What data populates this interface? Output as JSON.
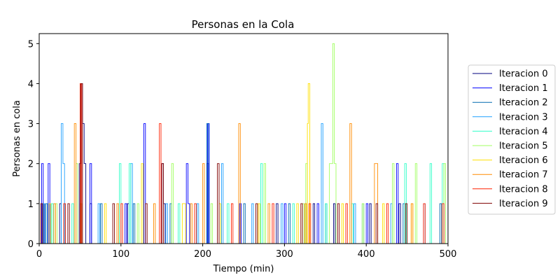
{
  "chart_data": {
    "type": "line",
    "title": "Personas en la Cola",
    "xlabel": "Tiempo (min)",
    "ylabel": "Personas en cola",
    "xlim": [
      0,
      500
    ],
    "ylim": [
      0,
      5.25
    ],
    "x_ticks": [
      0,
      100,
      200,
      300,
      400,
      500
    ],
    "y_ticks": [
      0,
      1,
      2,
      3,
      4,
      5
    ],
    "grid": false,
    "legend_position": "right",
    "series": [
      {
        "name": "Iteracion 0",
        "color": "#00007f",
        "points": [
          [
            0,
            0
          ],
          [
            4,
            1
          ],
          [
            6,
            0
          ],
          [
            25,
            1
          ],
          [
            27,
            0
          ],
          [
            49,
            2
          ],
          [
            51,
            4
          ],
          [
            53,
            3
          ],
          [
            55,
            2
          ],
          [
            57,
            0
          ],
          [
            62,
            1
          ],
          [
            64,
            0
          ],
          [
            108,
            1
          ],
          [
            110,
            0
          ],
          [
            150,
            2
          ],
          [
            152,
            1
          ],
          [
            154,
            0
          ],
          [
            205,
            2
          ],
          [
            207,
            0
          ],
          [
            290,
            1
          ],
          [
            292,
            0
          ],
          [
            335,
            1
          ],
          [
            337,
            0
          ],
          [
            360,
            1
          ],
          [
            362,
            0
          ],
          [
            404,
            1
          ],
          [
            406,
            0
          ],
          [
            440,
            1
          ],
          [
            442,
            0
          ],
          [
            500,
            0
          ]
        ]
      },
      {
        "name": "Iteracion 1",
        "color": "#0000ff",
        "points": [
          [
            0,
            0
          ],
          [
            3,
            2
          ],
          [
            5,
            0
          ],
          [
            11,
            2
          ],
          [
            13,
            0
          ],
          [
            62,
            2
          ],
          [
            64,
            0
          ],
          [
            105,
            1
          ],
          [
            107,
            0
          ],
          [
            128,
            3
          ],
          [
            130,
            0
          ],
          [
            180,
            2
          ],
          [
            182,
            1
          ],
          [
            184,
            0
          ],
          [
            206,
            3
          ],
          [
            208,
            0
          ],
          [
            245,
            1
          ],
          [
            247,
            0
          ],
          [
            300,
            1
          ],
          [
            302,
            0
          ],
          [
            340,
            1
          ],
          [
            342,
            0
          ],
          [
            400,
            1
          ],
          [
            402,
            0
          ],
          [
            437,
            2
          ],
          [
            439,
            0
          ],
          [
            500,
            0
          ]
        ]
      },
      {
        "name": "Iteracion 2",
        "color": "#006ab0",
        "points": [
          [
            0,
            0
          ],
          [
            8,
            1
          ],
          [
            10,
            0
          ],
          [
            30,
            1
          ],
          [
            32,
            0
          ],
          [
            75,
            1
          ],
          [
            77,
            0
          ],
          [
            115,
            1
          ],
          [
            117,
            0
          ],
          [
            160,
            1
          ],
          [
            162,
            0
          ],
          [
            205,
            3
          ],
          [
            207,
            0
          ],
          [
            250,
            1
          ],
          [
            252,
            0
          ],
          [
            305,
            1
          ],
          [
            307,
            0
          ],
          [
            350,
            1
          ],
          [
            352,
            0
          ],
          [
            395,
            1
          ],
          [
            397,
            0
          ],
          [
            445,
            1
          ],
          [
            447,
            0
          ],
          [
            490,
            1
          ],
          [
            492,
            0
          ],
          [
            500,
            0
          ]
        ]
      },
      {
        "name": "Iteracion 3",
        "color": "#1ea0ff",
        "points": [
          [
            0,
            0
          ],
          [
            5,
            1
          ],
          [
            7,
            0
          ],
          [
            27,
            3
          ],
          [
            29,
            2
          ],
          [
            31,
            0
          ],
          [
            50,
            1
          ],
          [
            52,
            0
          ],
          [
            72,
            1
          ],
          [
            74,
            0
          ],
          [
            112,
            2
          ],
          [
            114,
            0
          ],
          [
            155,
            1
          ],
          [
            157,
            0
          ],
          [
            193,
            1
          ],
          [
            195,
            0
          ],
          [
            223,
            2
          ],
          [
            225,
            0
          ],
          [
            260,
            1
          ],
          [
            262,
            0
          ],
          [
            296,
            1
          ],
          [
            298,
            0
          ],
          [
            345,
            3
          ],
          [
            347,
            0
          ],
          [
            385,
            1
          ],
          [
            387,
            0
          ],
          [
            430,
            1
          ],
          [
            432,
            0
          ],
          [
            470,
            1
          ],
          [
            472,
            0
          ],
          [
            500,
            0
          ]
        ]
      },
      {
        "name": "Iteracion 4",
        "color": "#30ffc8",
        "points": [
          [
            0,
            0
          ],
          [
            15,
            1
          ],
          [
            17,
            0
          ],
          [
            40,
            1
          ],
          [
            42,
            0
          ],
          [
            98,
            2
          ],
          [
            100,
            0
          ],
          [
            110,
            2
          ],
          [
            112,
            0
          ],
          [
            170,
            1
          ],
          [
            172,
            0
          ],
          [
            230,
            1
          ],
          [
            232,
            0
          ],
          [
            271,
            2
          ],
          [
            273,
            0
          ],
          [
            310,
            1
          ],
          [
            312,
            0
          ],
          [
            350,
            1
          ],
          [
            352,
            0
          ],
          [
            382,
            1
          ],
          [
            384,
            0
          ],
          [
            447,
            2
          ],
          [
            449,
            0
          ],
          [
            478,
            2
          ],
          [
            480,
            0
          ],
          [
            493,
            2
          ],
          [
            495,
            0
          ],
          [
            500,
            0
          ]
        ]
      },
      {
        "name": "Iteracion 5",
        "color": "#a0ff60",
        "points": [
          [
            0,
            0
          ],
          [
            20,
            1
          ],
          [
            22,
            0
          ],
          [
            45,
            2
          ],
          [
            47,
            0
          ],
          [
            120,
            1
          ],
          [
            122,
            0
          ],
          [
            162,
            2
          ],
          [
            164,
            0
          ],
          [
            210,
            1
          ],
          [
            212,
            0
          ],
          [
            275,
            2
          ],
          [
            277,
            0
          ],
          [
            322,
            1
          ],
          [
            324,
            0
          ],
          [
            326,
            2
          ],
          [
            328,
            0
          ],
          [
            355,
            2
          ],
          [
            357,
            2
          ],
          [
            359,
            5
          ],
          [
            361,
            2
          ],
          [
            363,
            0
          ],
          [
            395,
            1
          ],
          [
            397,
            0
          ],
          [
            432,
            2
          ],
          [
            434,
            0
          ],
          [
            460,
            2
          ],
          [
            462,
            0
          ],
          [
            495,
            2
          ],
          [
            497,
            0
          ],
          [
            500,
            0
          ]
        ]
      },
      {
        "name": "Iteracion 6",
        "color": "#ffe000",
        "points": [
          [
            0,
            0
          ],
          [
            12,
            1
          ],
          [
            14,
            0
          ],
          [
            50,
            1
          ],
          [
            52,
            0
          ],
          [
            80,
            1
          ],
          [
            82,
            0
          ],
          [
            125,
            2
          ],
          [
            127,
            0
          ],
          [
            175,
            1
          ],
          [
            179,
            0
          ],
          [
            220,
            1
          ],
          [
            222,
            0
          ],
          [
            268,
            1
          ],
          [
            270,
            0
          ],
          [
            315,
            1
          ],
          [
            317,
            0
          ],
          [
            328,
            3
          ],
          [
            329,
            4
          ],
          [
            331,
            0
          ],
          [
            370,
            1
          ],
          [
            372,
            0
          ],
          [
            420,
            1
          ],
          [
            422,
            0
          ],
          [
            455,
            1
          ],
          [
            457,
            0
          ],
          [
            500,
            0
          ]
        ]
      },
      {
        "name": "Iteracion 7",
        "color": "#ff8c00",
        "points": [
          [
            0,
            0
          ],
          [
            18,
            1
          ],
          [
            20,
            0
          ],
          [
            43,
            3
          ],
          [
            45,
            0
          ],
          [
            95,
            1
          ],
          [
            97,
            0
          ],
          [
            140,
            1
          ],
          [
            142,
            0
          ],
          [
            185,
            1
          ],
          [
            187,
            0
          ],
          [
            200,
            2
          ],
          [
            202,
            0
          ],
          [
            244,
            3
          ],
          [
            246,
            0
          ],
          [
            280,
            1
          ],
          [
            282,
            0
          ],
          [
            325,
            1
          ],
          [
            327,
            0
          ],
          [
            380,
            3
          ],
          [
            382,
            0
          ],
          [
            410,
            2
          ],
          [
            414,
            0
          ],
          [
            455,
            1
          ],
          [
            457,
            0
          ],
          [
            500,
            0
          ]
        ]
      },
      {
        "name": "Iteracion 8",
        "color": "#ff2000",
        "points": [
          [
            0,
            0
          ],
          [
            30,
            1
          ],
          [
            32,
            0
          ],
          [
            50,
            4
          ],
          [
            52,
            0
          ],
          [
            100,
            1
          ],
          [
            102,
            0
          ],
          [
            147,
            3
          ],
          [
            149,
            0
          ],
          [
            190,
            1
          ],
          [
            192,
            0
          ],
          [
            235,
            1
          ],
          [
            237,
            0
          ],
          [
            285,
            1
          ],
          [
            287,
            0
          ],
          [
            330,
            1
          ],
          [
            332,
            0
          ],
          [
            375,
            1
          ],
          [
            377,
            0
          ],
          [
            425,
            1
          ],
          [
            427,
            0
          ],
          [
            470,
            1
          ],
          [
            472,
            0
          ],
          [
            493,
            1
          ],
          [
            495,
            0
          ],
          [
            500,
            0
          ]
        ]
      },
      {
        "name": "Iteracion 9",
        "color": "#7f0000",
        "points": [
          [
            0,
            0
          ],
          [
            2,
            1
          ],
          [
            4,
            0
          ],
          [
            35,
            1
          ],
          [
            37,
            0
          ],
          [
            51,
            4
          ],
          [
            53,
            0
          ],
          [
            90,
            1
          ],
          [
            92,
            0
          ],
          [
            130,
            1
          ],
          [
            132,
            0
          ],
          [
            150,
            2
          ],
          [
            152,
            0
          ],
          [
            218,
            2
          ],
          [
            220,
            0
          ],
          [
            265,
            1
          ],
          [
            267,
            0
          ],
          [
            320,
            1
          ],
          [
            322,
            0
          ],
          [
            365,
            1
          ],
          [
            367,
            0
          ],
          [
            412,
            1
          ],
          [
            414,
            0
          ],
          [
            448,
            1
          ],
          [
            450,
            0
          ],
          [
            500,
            0
          ]
        ]
      }
    ]
  }
}
